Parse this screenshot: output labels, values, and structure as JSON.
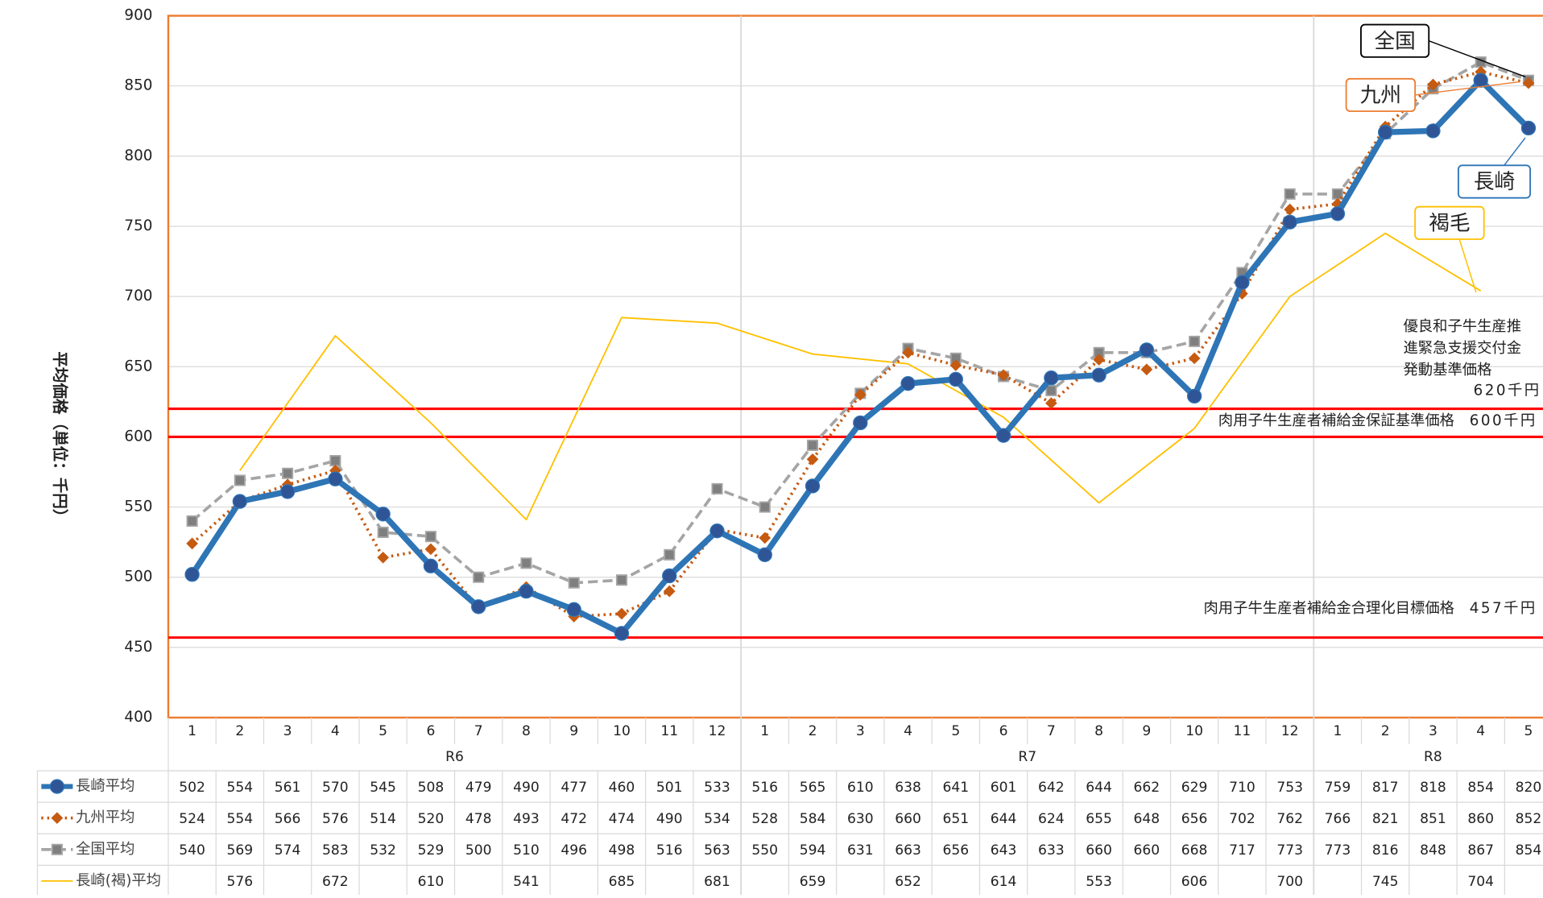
{
  "chart_data": {
    "type": "line",
    "y_label": "平均価格（単位：千円）",
    "categories": [
      "1",
      "2",
      "3",
      "4",
      "5",
      "6",
      "7",
      "8",
      "9",
      "10",
      "11",
      "12",
      "1",
      "2",
      "3",
      "4",
      "5",
      "6",
      "7",
      "8",
      "9",
      "10",
      "11",
      "12",
      "1",
      "2",
      "3",
      "4",
      "5"
    ],
    "groups": [
      "R6",
      "R7",
      "R8"
    ],
    "ylim": [
      400,
      900
    ],
    "yticks": [
      400,
      450,
      500,
      550,
      600,
      650,
      700,
      750,
      800,
      850,
      900
    ],
    "grid": true,
    "series": [
      {
        "name": "長崎平均",
        "color": "#2e75b6",
        "marker": "circle",
        "values": [
          502,
          554,
          561,
          570,
          545,
          508,
          479,
          490,
          477,
          460,
          501,
          533,
          516,
          565,
          610,
          638,
          641,
          601,
          642,
          644,
          662,
          629,
          710,
          753,
          759,
          817,
          818,
          854,
          820
        ]
      },
      {
        "name": "九州平均",
        "color": "#c55a11",
        "marker": "diamond",
        "values": [
          524,
          554,
          566,
          576,
          514,
          520,
          478,
          493,
          472,
          474,
          490,
          534,
          528,
          584,
          630,
          660,
          651,
          644,
          624,
          655,
          648,
          656,
          702,
          762,
          766,
          821,
          851,
          860,
          852
        ]
      },
      {
        "name": "全国平均",
        "color": "#a5a5a5",
        "marker": "square",
        "values": [
          540,
          569,
          574,
          583,
          532,
          529,
          500,
          510,
          496,
          498,
          516,
          563,
          550,
          594,
          631,
          663,
          656,
          643,
          633,
          660,
          660,
          668,
          717,
          773,
          773,
          816,
          848,
          867,
          854
        ]
      },
      {
        "name": "長崎(褐)平均",
        "color": "#ffc000",
        "marker": "none",
        "connect_gaps": true,
        "values": [
          null,
          576,
          null,
          672,
          null,
          610,
          null,
          541,
          null,
          685,
          null,
          681,
          null,
          659,
          null,
          652,
          null,
          614,
          null,
          553,
          null,
          606,
          null,
          700,
          null,
          745,
          null,
          704,
          null
        ]
      }
    ],
    "reference_lines": [
      {
        "label": [
          "優良和子牛生産推",
          "進緊急支援交付金",
          "発動基準価格"
        ],
        "value": 620,
        "value_label": "620千円",
        "color": "#ff0000"
      },
      {
        "label": [
          "肉用子牛生産者補給金保証基準価格"
        ],
        "value": 600,
        "value_label": "600千円",
        "color": "#ff0000"
      },
      {
        "label": [
          "肉用子牛生産者補給金合理化目標価格"
        ],
        "value": 457,
        "value_label": "457千円",
        "color": "#ff0000"
      }
    ],
    "annotations": [
      "全国",
      "九州",
      "長崎",
      "褐毛"
    ]
  }
}
